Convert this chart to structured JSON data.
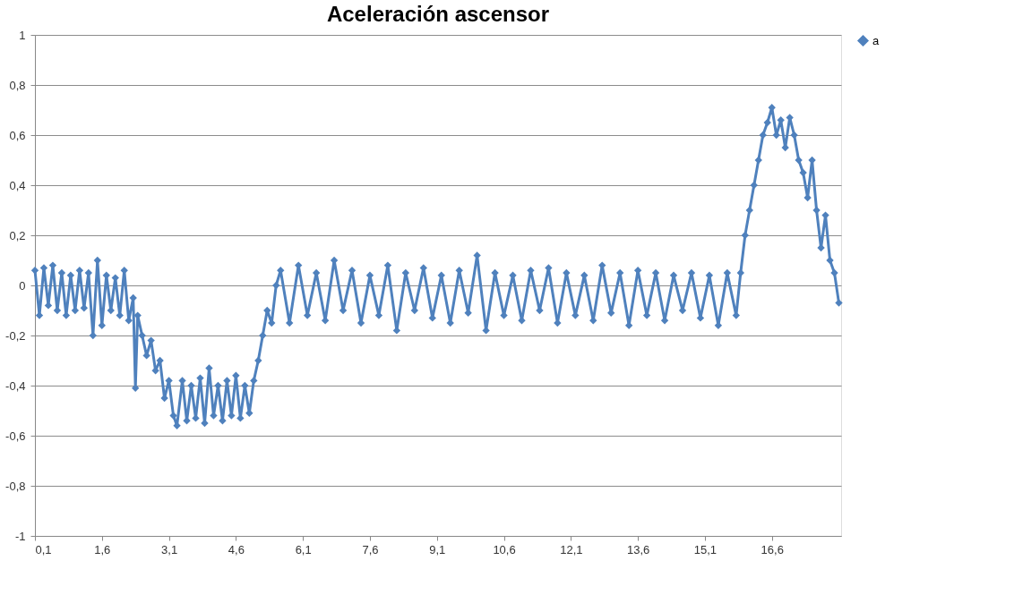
{
  "chart_data": {
    "type": "line",
    "title": "Aceleración ascensor",
    "x": [
      0.1,
      0.2,
      0.3,
      0.4,
      0.5,
      0.6,
      0.7,
      0.8,
      0.9,
      1.0,
      1.1,
      1.2,
      1.3,
      1.4,
      1.5,
      1.6,
      1.7,
      1.8,
      1.9,
      2.0,
      2.1,
      2.2,
      2.3,
      2.35,
      2.4,
      2.5,
      2.6,
      2.7,
      2.8,
      2.9,
      3.0,
      3.1,
      3.2,
      3.28,
      3.4,
      3.5,
      3.6,
      3.7,
      3.8,
      3.9,
      4.0,
      4.1,
      4.2,
      4.3,
      4.4,
      4.5,
      4.6,
      4.7,
      4.8,
      4.9,
      5.0,
      5.1,
      5.2,
      5.3,
      5.4,
      5.5,
      5.6,
      5.8,
      6.0,
      6.2,
      6.4,
      6.6,
      6.8,
      7.0,
      7.2,
      7.4,
      7.6,
      7.8,
      8.0,
      8.2,
      8.4,
      8.6,
      8.8,
      9.0,
      9.2,
      9.4,
      9.6,
      9.8,
      10.0,
      10.2,
      10.4,
      10.6,
      10.8,
      11.0,
      11.2,
      11.4,
      11.6,
      11.8,
      12.0,
      12.2,
      12.4,
      12.6,
      12.8,
      13.0,
      13.2,
      13.4,
      13.6,
      13.8,
      14.0,
      14.2,
      14.4,
      14.6,
      14.8,
      15.0,
      15.2,
      15.4,
      15.6,
      15.8,
      15.9,
      16.0,
      16.1,
      16.2,
      16.3,
      16.4,
      16.5,
      16.6,
      16.7,
      16.8,
      16.9,
      17.0,
      17.1,
      17.2,
      17.3,
      17.4,
      17.5,
      17.6,
      17.7,
      17.8,
      17.9,
      18.0,
      18.1
    ],
    "series": [
      {
        "name": "a",
        "color": "#4f81bd",
        "values": [
          0.06,
          -0.12,
          0.07,
          -0.08,
          0.08,
          -0.1,
          0.05,
          -0.12,
          0.04,
          -0.1,
          0.06,
          -0.09,
          0.05,
          -0.2,
          0.1,
          -0.16,
          0.04,
          -0.1,
          0.03,
          -0.12,
          0.06,
          -0.14,
          -0.05,
          -0.41,
          -0.12,
          -0.2,
          -0.28,
          -0.22,
          -0.34,
          -0.3,
          -0.45,
          -0.38,
          -0.52,
          -0.56,
          -0.38,
          -0.54,
          -0.4,
          -0.53,
          -0.37,
          -0.55,
          -0.33,
          -0.52,
          -0.4,
          -0.54,
          -0.38,
          -0.52,
          -0.36,
          -0.53,
          -0.4,
          -0.51,
          -0.38,
          -0.3,
          -0.2,
          -0.1,
          -0.15,
          0,
          0.06,
          -0.15,
          0.08,
          -0.12,
          0.05,
          -0.14,
          0.1,
          -0.1,
          0.06,
          -0.15,
          0.04,
          -0.12,
          0.08,
          -0.18,
          0.05,
          -0.1,
          0.07,
          -0.13,
          0.04,
          -0.15,
          0.06,
          -0.11,
          0.12,
          -0.18,
          0.05,
          -0.12,
          0.04,
          -0.14,
          0.06,
          -0.1,
          0.07,
          -0.15,
          0.05,
          -0.12,
          0.04,
          -0.14,
          0.08,
          -0.11,
          0.05,
          -0.16,
          0.06,
          -0.12,
          0.05,
          -0.14,
          0.04,
          -0.1,
          0.05,
          -0.13,
          0.04,
          -0.16,
          0.05,
          -0.12,
          0.05,
          0.2,
          0.3,
          0.4,
          0.5,
          0.6,
          0.65,
          0.71,
          0.6,
          0.66,
          0.55,
          0.67,
          0.6,
          0.5,
          0.45,
          0.35,
          0.5,
          0.3,
          0.15,
          0.28,
          0.1,
          0.05,
          -0.07
        ]
      }
    ],
    "xlim": [
      0.1,
      18.15
    ],
    "xticks": [
      {
        "value": 0.1,
        "label": "0,1"
      },
      {
        "value": 1.6,
        "label": "1,6"
      },
      {
        "value": 3.1,
        "label": "3,1"
      },
      {
        "value": 4.6,
        "label": "4,6"
      },
      {
        "value": 6.1,
        "label": "6,1"
      },
      {
        "value": 7.6,
        "label": "7,6"
      },
      {
        "value": 9.1,
        "label": "9,1"
      },
      {
        "value": 10.6,
        "label": "10,6"
      },
      {
        "value": 12.1,
        "label": "12,1"
      },
      {
        "value": 13.6,
        "label": "13,6"
      },
      {
        "value": 15.1,
        "label": "15,1"
      },
      {
        "value": 16.6,
        "label": "16,6"
      }
    ],
    "ylim": [
      -1,
      1
    ],
    "yticks": [
      {
        "value": -1,
        "label": "-1"
      },
      {
        "value": -0.8,
        "label": "-0,8"
      },
      {
        "value": -0.6,
        "label": "-0,6"
      },
      {
        "value": -0.4,
        "label": "-0,4"
      },
      {
        "value": -0.2,
        "label": "-0,2"
      },
      {
        "value": 0,
        "label": "0"
      },
      {
        "value": 0.2,
        "label": "0,2"
      },
      {
        "value": 0.4,
        "label": "0,4"
      },
      {
        "value": 0.6,
        "label": "0,6"
      },
      {
        "value": 0.8,
        "label": "0,8"
      },
      {
        "value": 1,
        "label": "1"
      }
    ],
    "grid": "y",
    "legend": "right",
    "marker": "diamond",
    "line_style": "solid"
  }
}
